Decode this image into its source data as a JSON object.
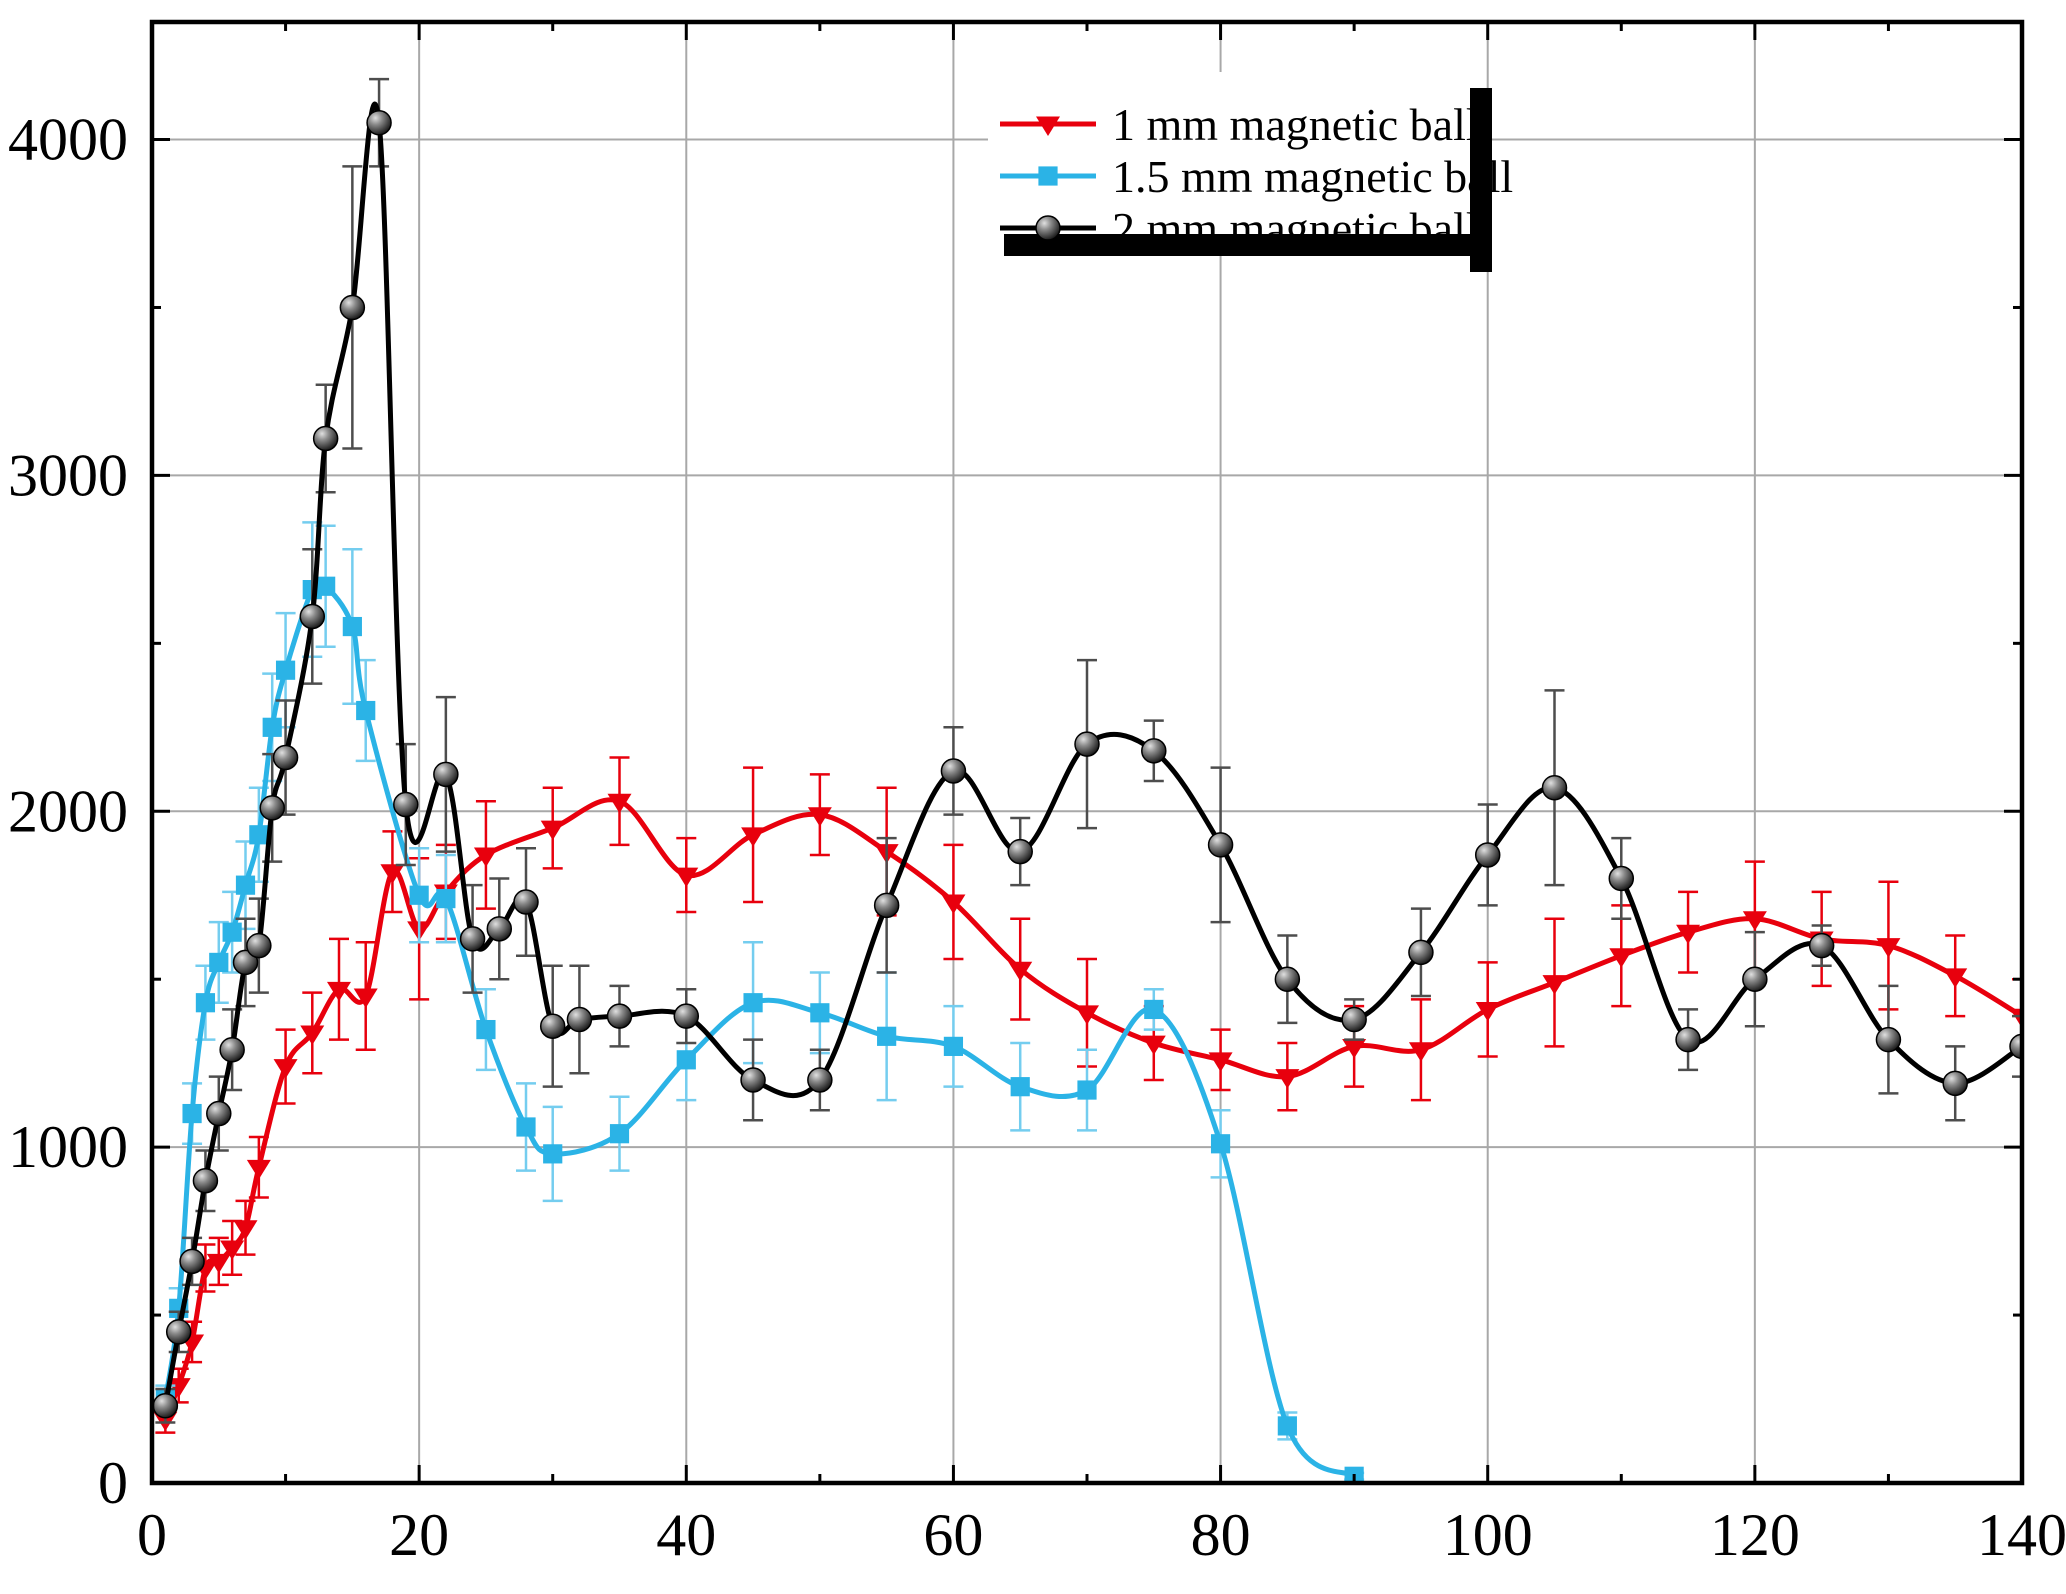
{
  "chart_data": {
    "type": "line",
    "title": "",
    "xlabel": "",
    "ylabel": "",
    "xlim": [
      0,
      140
    ],
    "ylim": [
      0,
      4350
    ],
    "x_major_ticks": [
      0,
      20,
      40,
      60,
      80,
      100,
      120,
      140
    ],
    "x_minor_ticks": [
      10,
      30,
      50,
      70,
      90,
      110,
      130
    ],
    "y_major_ticks": [
      0,
      1000,
      2000,
      3000,
      4000
    ],
    "y_minor_ticks": [
      500,
      1500,
      2500,
      3500
    ],
    "grid": true,
    "colors": {
      "grid": "#a8a8a8",
      "axis": "#000000",
      "background": "#ffffff"
    },
    "legend": {
      "position": "top-right",
      "shadow": true,
      "entries": [
        "1 mm magnetic ball",
        "1.5 mm magnetic ball",
        "2 mm magnetic ball"
      ]
    },
    "series": [
      {
        "name": "1 mm magnetic ball",
        "color": "#e8000d",
        "err_color": "#e8000d",
        "marker": "triangle-down",
        "x": [
          1,
          2,
          3,
          4,
          5,
          6,
          7,
          8,
          10,
          12,
          14,
          16,
          18,
          20,
          22,
          25,
          30,
          35,
          40,
          45,
          50,
          55,
          60,
          65,
          70,
          75,
          80,
          85,
          90,
          95,
          100,
          105,
          110,
          115,
          120,
          125,
          130,
          135,
          140
        ],
        "y": [
          190,
          290,
          420,
          640,
          660,
          700,
          760,
          940,
          1240,
          1340,
          1470,
          1450,
          1820,
          1650,
          1760,
          1870,
          1950,
          2030,
          1810,
          1930,
          1990,
          1880,
          1730,
          1530,
          1400,
          1310,
          1260,
          1210,
          1300,
          1290,
          1410,
          1490,
          1570,
          1640,
          1680,
          1620,
          1600,
          1510,
          1390
        ],
        "yerr": [
          40,
          50,
          60,
          70,
          70,
          80,
          80,
          90,
          110,
          120,
          150,
          160,
          120,
          210,
          140,
          160,
          120,
          130,
          110,
          200,
          120,
          190,
          170,
          150,
          160,
          110,
          90,
          100,
          120,
          150,
          140,
          190,
          150,
          120,
          170,
          140,
          190,
          120,
          110
        ]
      },
      {
        "name": "1.5 mm magnetic ball",
        "color": "#2bb3e6",
        "err_color": "#74cdef",
        "marker": "square",
        "x": [
          1,
          2,
          3,
          4,
          5,
          6,
          7,
          8,
          9,
          10,
          12,
          13,
          15,
          16,
          20,
          22,
          25,
          28,
          30,
          35,
          40,
          45,
          50,
          55,
          60,
          65,
          70,
          75,
          80,
          85,
          90
        ],
        "y": [
          250,
          520,
          1100,
          1430,
          1550,
          1640,
          1780,
          1930,
          2250,
          2420,
          2660,
          2670,
          2550,
          2300,
          1750,
          1740,
          1350,
          1060,
          980,
          1040,
          1260,
          1430,
          1400,
          1330,
          1300,
          1180,
          1170,
          1410,
          1010,
          170,
          20
        ],
        "yerr": [
          40,
          60,
          90,
          110,
          120,
          120,
          130,
          140,
          160,
          170,
          200,
          180,
          230,
          150,
          140,
          130,
          120,
          130,
          140,
          110,
          120,
          180,
          120,
          190,
          120,
          130,
          120,
          60,
          100,
          40,
          10
        ]
      },
      {
        "name": "2 mm magnetic ball",
        "color": "#000000",
        "err_color": "#4d4d4d",
        "marker": "ball",
        "x": [
          1,
          2,
          3,
          4,
          5,
          6,
          7,
          8,
          9,
          10,
          12,
          13,
          15,
          17,
          19,
          22,
          24,
          26,
          28,
          30,
          32,
          35,
          40,
          45,
          50,
          55,
          60,
          65,
          70,
          75,
          80,
          85,
          90,
          95,
          100,
          105,
          110,
          115,
          120,
          125,
          130,
          135,
          140
        ],
        "y": [
          230,
          450,
          660,
          900,
          1100,
          1290,
          1550,
          1600,
          2010,
          2160,
          2580,
          3110,
          3500,
          4050,
          2020,
          2110,
          1620,
          1650,
          1730,
          1360,
          1380,
          1390,
          1390,
          1200,
          1200,
          1720,
          2120,
          1880,
          2200,
          2180,
          1900,
          1500,
          1380,
          1580,
          1870,
          2070,
          1800,
          1320,
          1500,
          1600,
          1320,
          1190,
          1300
        ],
        "yerr": [
          50,
          60,
          70,
          90,
          110,
          120,
          130,
          140,
          160,
          170,
          200,
          160,
          420,
          130,
          180,
          230,
          160,
          150,
          160,
          180,
          160,
          90,
          80,
          120,
          90,
          200,
          130,
          100,
          250,
          90,
          230,
          130,
          60,
          130,
          150,
          290,
          120,
          90,
          140,
          60,
          160,
          110,
          90
        ]
      }
    ]
  }
}
